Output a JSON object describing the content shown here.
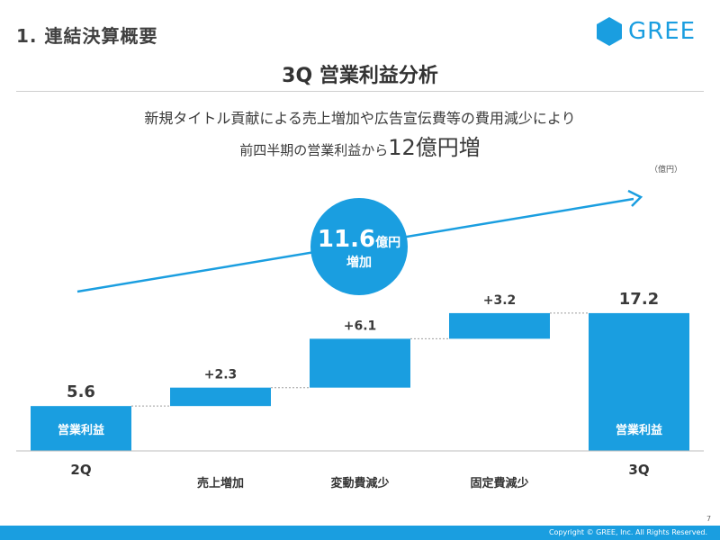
{
  "header": {
    "section_title": "1. 連結決算概要",
    "logo_text": "GREE"
  },
  "main_title": "3Q 営業利益分析",
  "subtitle_line1": "新規タイトル貢献による売上増加や広告宣伝費等の費用減少により",
  "subtitle_line2_prefix": "前四半期の営業利益から",
  "subtitle_line2_emphasis": "12億円増",
  "unit_label": "（億円）",
  "callout": {
    "value": "11.6",
    "unit": "億円",
    "label": "増加"
  },
  "footer": {
    "copyright": "Copyright © GREE, Inc. All Rights Reserved.",
    "page_number": "7"
  },
  "colors": {
    "accent": "#1a9ee0",
    "text": "#3a3a3a"
  },
  "chart_data": {
    "type": "bar",
    "subtype": "waterfall",
    "categories": [
      "2Q",
      "売上増加",
      "変動費減少",
      "固定費減少",
      "3Q"
    ],
    "steps": [
      {
        "category": "2Q",
        "kind": "total",
        "value": 5.6,
        "label": "5.6",
        "inner_label": "営業利益"
      },
      {
        "category": "売上増加",
        "kind": "delta",
        "value": 2.3,
        "label": "+2.3"
      },
      {
        "category": "変動費減少",
        "kind": "delta",
        "value": 6.1,
        "label": "+6.1"
      },
      {
        "category": "固定費減少",
        "kind": "delta",
        "value": 3.2,
        "label": "+3.2"
      },
      {
        "category": "3Q",
        "kind": "total",
        "value": 17.2,
        "label": "17.2",
        "inner_label": "営業利益"
      }
    ],
    "ylim": [
      0,
      20
    ],
    "grid": false,
    "legend": "none"
  }
}
